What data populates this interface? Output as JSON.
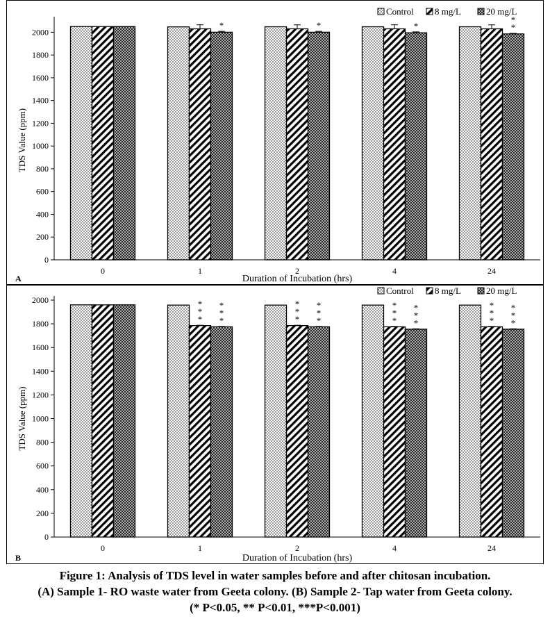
{
  "caption": {
    "line1": "Figure 1: Analysis of TDS level in water samples before and after chitosan incubation.",
    "line2": "(A) Sample 1- RO waste water from Geeta colony. (B) Sample 2- Tap water from Geeta colony.",
    "line3": "(* P<0.05, ** P<0.01, ***P<0.001)"
  },
  "chart_data": [
    {
      "type": "bar",
      "panel_label": "A",
      "categories": [
        "0",
        "1",
        "2",
        "4",
        "24"
      ],
      "series": [
        {
          "name": "Control",
          "pattern": "dots",
          "values": [
            2050,
            2047,
            2048,
            2048,
            2048
          ],
          "errors": [
            0,
            0,
            0,
            0,
            0
          ],
          "significance": [
            "",
            "",
            "",
            "",
            ""
          ]
        },
        {
          "name": "8 mg/L",
          "pattern": "diagonal",
          "values": [
            2050,
            2030,
            2030,
            2030,
            2030
          ],
          "errors": [
            0,
            35,
            35,
            35,
            35
          ],
          "significance": [
            "",
            "",
            "",
            "",
            ""
          ]
        },
        {
          "name": "20 mg/L",
          "pattern": "crosshatch",
          "values": [
            2050,
            2000,
            2000,
            1995,
            1985
          ],
          "errors": [
            0,
            8,
            8,
            8,
            5
          ],
          "significance": [
            "",
            "*",
            "*",
            "*",
            "**"
          ]
        }
      ],
      "xlabel": "Duration of Incubation (hrs)",
      "ylabel": "TDS Value (ppm)",
      "ylim": [
        0,
        2100
      ],
      "yticks": [
        0,
        200,
        400,
        600,
        800,
        1000,
        1200,
        1400,
        1600,
        1800,
        2000
      ],
      "grid": false,
      "legend_position": "top-right"
    },
    {
      "type": "bar",
      "panel_label": "B",
      "categories": [
        "0",
        "1",
        "2",
        "4",
        "24"
      ],
      "series": [
        {
          "name": "Control",
          "pattern": "dots",
          "values": [
            1960,
            1958,
            1958,
            1958,
            1958
          ],
          "errors": [
            0,
            0,
            0,
            0,
            0
          ],
          "significance": [
            "",
            "",
            "",
            "",
            ""
          ]
        },
        {
          "name": "8 mg/L",
          "pattern": "diagonal",
          "values": [
            1960,
            1785,
            1785,
            1775,
            1775
          ],
          "errors": [
            0,
            3,
            3,
            3,
            3
          ],
          "significance": [
            "",
            "***",
            "***",
            "***",
            "***"
          ]
        },
        {
          "name": "20 mg/L",
          "pattern": "crosshatch",
          "values": [
            1960,
            1775,
            1775,
            1755,
            1755
          ],
          "errors": [
            0,
            3,
            3,
            3,
            3
          ],
          "significance": [
            "",
            "***",
            "***",
            "***",
            "***"
          ]
        }
      ],
      "xlabel": "Duration of Incubation (hrs)",
      "ylabel": "TDS Value (ppm)",
      "ylim": [
        0,
        2000
      ],
      "yticks": [
        0,
        200,
        400,
        600,
        800,
        1000,
        1200,
        1400,
        1600,
        1800,
        2000
      ],
      "grid": false,
      "legend_position": "top-right"
    }
  ]
}
